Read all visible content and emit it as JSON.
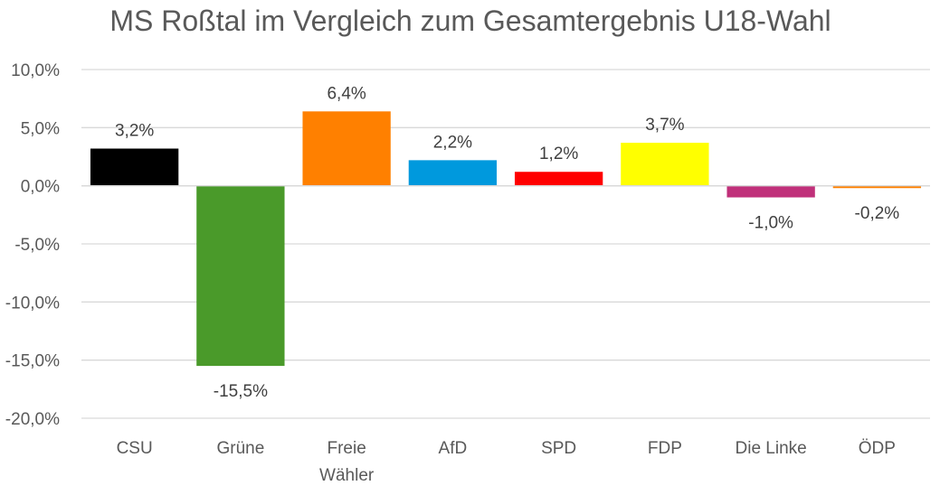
{
  "chart_data": {
    "type": "bar",
    "title": "MS Roßtal im Vergleich zum Gesamtergebnis U18-Wahl",
    "xlabel": "",
    "ylabel": "",
    "ylim": [
      -20,
      10
    ],
    "yticks": [
      10,
      5,
      0,
      -5,
      -10,
      -15,
      -20
    ],
    "ytick_labels": [
      "10,0%",
      "5,0%",
      "0,0%",
      "-5,0%",
      "-10,0%",
      "-15,0%",
      "-20,0%"
    ],
    "grid": true,
    "legend": "none",
    "categories": [
      [
        "CSU"
      ],
      [
        "Grüne"
      ],
      [
        "Freie",
        "Wähler"
      ],
      [
        "AfD"
      ],
      [
        "SPD"
      ],
      [
        "FDP"
      ],
      [
        "Die Linke"
      ],
      [
        "ÖDP"
      ]
    ],
    "values": [
      3.2,
      -15.5,
      6.4,
      2.2,
      1.2,
      3.7,
      -1.0,
      -0.2
    ],
    "data_labels": [
      "3,2%",
      "-15,5%",
      "6,4%",
      "2,2%",
      "1,2%",
      "3,7%",
      "-1,0%",
      "-0,2%"
    ],
    "colors": [
      "#000000",
      "#4A9A2A",
      "#FF8000",
      "#0099DD",
      "#FF0000",
      "#FFFF00",
      "#C0307A",
      "#FF8000"
    ]
  }
}
